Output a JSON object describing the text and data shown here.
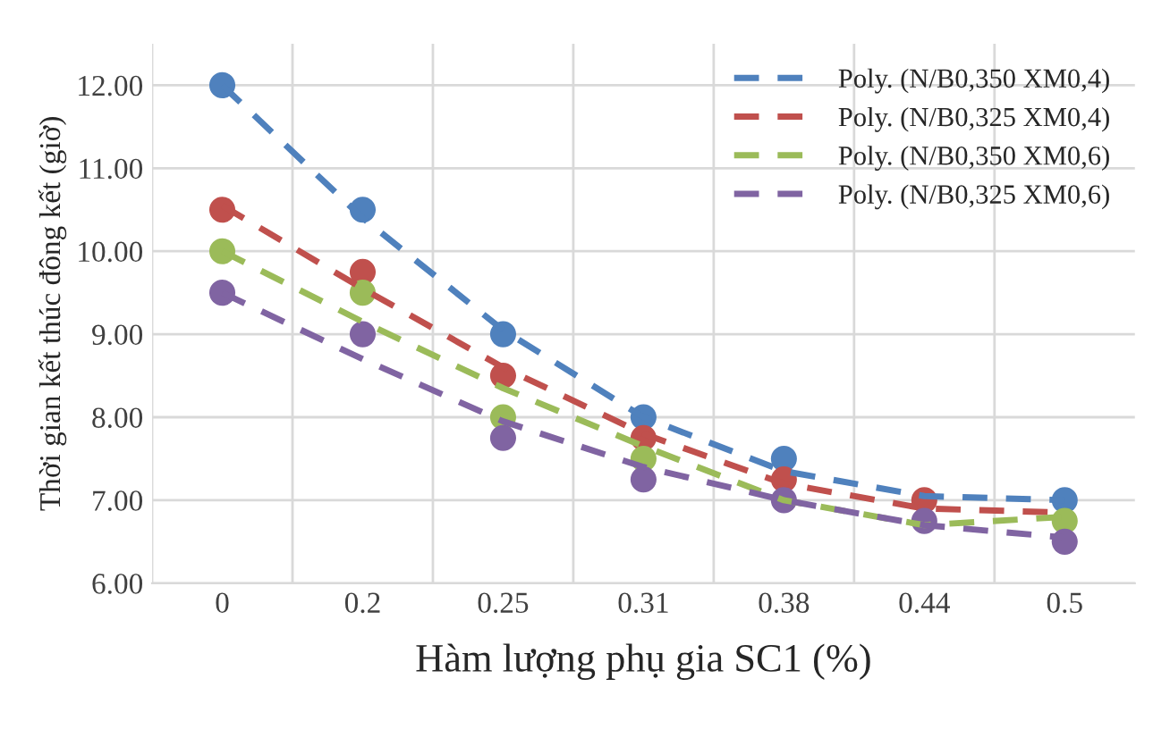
{
  "chart_data": {
    "type": "line",
    "xlabel": "Hàm lượng phụ gia SC1 (%)",
    "ylabel": "Thời gian kết thúc đông kết (giờ)",
    "categories": [
      "0",
      "0.2",
      "0.25",
      "0.31",
      "0.38",
      "0.44",
      "0.5"
    ],
    "ylim": [
      6,
      12.5
    ],
    "yticks": [
      {
        "value": 6,
        "label": "6.00"
      },
      {
        "value": 7,
        "label": "7.00"
      },
      {
        "value": 8,
        "label": "8.00"
      },
      {
        "value": 9,
        "label": "9.00"
      },
      {
        "value": 10,
        "label": "10.00"
      },
      {
        "value": 11,
        "label": "11.00"
      },
      {
        "value": 12,
        "label": "12.00"
      }
    ],
    "grid": true,
    "legend": "top right",
    "series": [
      {
        "type": "scatter",
        "marker": "circle",
        "color": "#4f81bd",
        "values": [
          12,
          10.5,
          9,
          8,
          7.5,
          null,
          7
        ]
      },
      {
        "type": "scatter",
        "marker": "circle",
        "color": "#c0504d",
        "values": [
          10.5,
          9.75,
          8.5,
          7.75,
          7.25,
          7,
          null
        ]
      },
      {
        "type": "scatter",
        "marker": "circle",
        "color": "#9bbb59",
        "values": [
          10,
          9.5,
          8,
          7.5,
          null,
          null,
          6.75
        ]
      },
      {
        "type": "scatter",
        "marker": "circle",
        "color": "#8064a2",
        "values": [
          9.5,
          9,
          7.75,
          7.25,
          7,
          6.75,
          6.5
        ]
      },
      {
        "name": "Poly. (N/B0,350 XM0,4)",
        "line_style": "dashed",
        "marker": "none",
        "color": "#4f81bd",
        "values": [
          12.0,
          10.4,
          9.05,
          8.0,
          7.35,
          7.05,
          7.0
        ]
      },
      {
        "name": "Poly. (N/B0,325 XM0,4)",
        "line_style": "dashed",
        "marker": "none",
        "color": "#c0504d",
        "values": [
          10.55,
          9.55,
          8.6,
          7.8,
          7.2,
          6.9,
          6.85
        ]
      },
      {
        "name": "Poly. (N/B0,350 XM0,6)",
        "line_style": "dashed",
        "marker": "none",
        "color": "#9bbb59",
        "values": [
          10.0,
          9.15,
          8.35,
          7.65,
          7.0,
          6.7,
          6.8
        ]
      },
      {
        "name": "Poly. (N/B0,325 XM0,6)",
        "line_style": "dashed",
        "marker": "none",
        "color": "#8064a2",
        "values": [
          9.5,
          8.7,
          7.95,
          7.4,
          7.0,
          6.7,
          6.55
        ]
      }
    ]
  }
}
